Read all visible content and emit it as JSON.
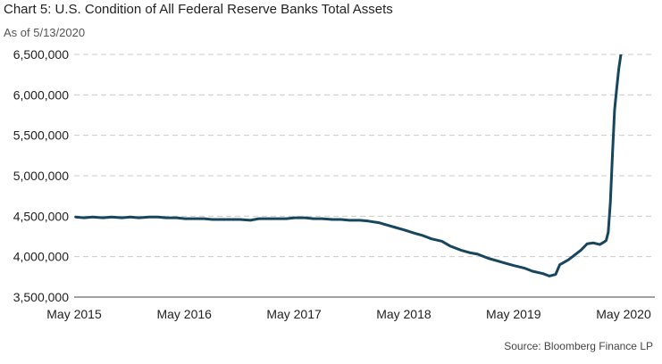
{
  "title": "Chart 5: U.S. Condition of All Federal Reserve Banks Total Assets",
  "subtitle": "As of 5/13/2020",
  "source": "Source: Bloomberg Finance LP",
  "chart_data": {
    "type": "line",
    "title": "Chart 5: U.S. Condition of All Federal Reserve Banks Total Assets",
    "subtitle": "As of 5/13/2020",
    "xlabel": "",
    "ylabel": "",
    "ylim": [
      3500000,
      6500000
    ],
    "xlim": [
      "2015-05-01",
      "2020-05-01"
    ],
    "y_ticks": [
      3500000,
      4000000,
      4500000,
      5000000,
      5500000,
      6000000,
      6500000
    ],
    "y_tick_labels": [
      "3,500,000",
      "4,000,000",
      "4,500,000",
      "5,000,000",
      "5,500,000",
      "6,000,000",
      "6,500,000"
    ],
    "x_ticks": [
      "2015-05-01",
      "2016-05-01",
      "2017-05-01",
      "2018-05-01",
      "2019-05-01",
      "2020-05-01"
    ],
    "x_tick_labels": [
      "May 2015",
      "May 2016",
      "May 2017",
      "May 2018",
      "May 2019",
      "May 2020"
    ],
    "grid": "horizontal dashed",
    "legend": "none",
    "line_color": "#17465e",
    "series": [
      {
        "x": [
          "2015-05-06",
          "2015-06-03",
          "2015-07-01",
          "2015-08-05",
          "2015-09-02",
          "2015-10-07",
          "2015-11-04",
          "2015-12-02",
          "2016-01-06",
          "2016-02-03",
          "2016-03-02",
          "2016-04-06",
          "2016-05-04",
          "2016-06-01",
          "2016-07-06",
          "2016-08-03",
          "2016-09-07",
          "2016-10-05",
          "2016-11-02",
          "2016-12-07",
          "2017-01-04",
          "2017-02-01",
          "2017-03-01",
          "2017-04-05",
          "2017-05-03",
          "2017-06-07",
          "2017-07-05",
          "2017-08-02",
          "2017-09-06",
          "2017-10-04",
          "2017-11-01",
          "2017-12-06",
          "2018-01-03",
          "2018-02-07",
          "2018-03-07",
          "2018-04-04",
          "2018-05-02",
          "2018-06-06",
          "2018-07-04",
          "2018-08-01",
          "2018-09-05",
          "2018-10-03",
          "2018-11-07",
          "2018-12-05",
          "2019-01-02",
          "2019-02-06",
          "2019-03-06",
          "2019-04-03",
          "2019-05-01",
          "2019-06-05",
          "2019-07-03",
          "2019-08-07",
          "2019-08-28",
          "2019-09-18",
          "2019-10-02",
          "2019-10-30",
          "2019-11-20",
          "2019-12-11",
          "2020-01-01",
          "2020-01-22",
          "2020-02-12",
          "2020-02-26",
          "2020-03-04",
          "2020-03-11",
          "2020-03-18",
          "2020-03-25",
          "2020-04-01",
          "2020-04-08",
          "2020-04-15",
          "2020-04-22",
          "2020-04-29",
          "2020-05-06",
          "2020-05-13"
        ],
        "values": [
          4490000,
          4480000,
          4490000,
          4480000,
          4490000,
          4480000,
          4490000,
          4480000,
          4490000,
          4490000,
          4480000,
          4480000,
          4470000,
          4470000,
          4470000,
          4460000,
          4460000,
          4460000,
          4460000,
          4450000,
          4470000,
          4470000,
          4470000,
          4470000,
          4480000,
          4480000,
          4470000,
          4470000,
          4460000,
          4460000,
          4450000,
          4450000,
          4440000,
          4420000,
          4390000,
          4360000,
          4330000,
          4290000,
          4260000,
          4220000,
          4190000,
          4130000,
          4080000,
          4050000,
          4030000,
          3980000,
          3950000,
          3920000,
          3890000,
          3860000,
          3820000,
          3790000,
          3760000,
          3780000,
          3900000,
          3960000,
          4020000,
          4080000,
          4160000,
          4170000,
          4150000,
          4180000,
          4200000,
          4300000,
          4670000,
          5250000,
          5810000,
          6080000,
          6320000,
          6500000,
          6650000,
          6700000,
          6720000
        ]
      }
    ]
  }
}
